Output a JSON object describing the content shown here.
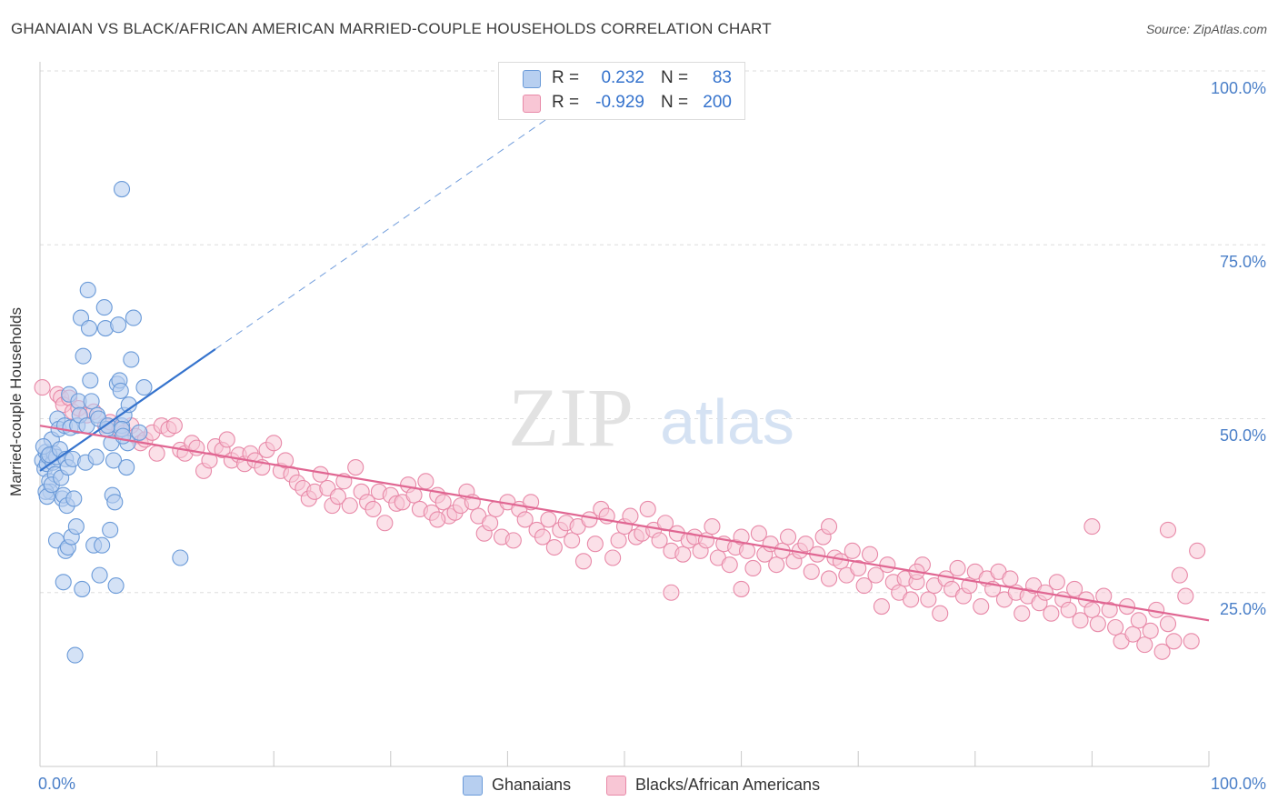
{
  "header": {
    "title": "GHANAIAN VS BLACK/AFRICAN AMERICAN MARRIED-COUPLE HOUSEHOLDS CORRELATION CHART",
    "source": "Source: ZipAtlas.com"
  },
  "watermark": {
    "zip": "ZIP",
    "atlas": "atlas"
  },
  "colors": {
    "blue_fill": "#b7cff0",
    "blue_stroke": "#6a9ad8",
    "blue_line": "#3573cd",
    "pink_fill": "#f8c6d5",
    "pink_stroke": "#e889a8",
    "pink_line": "#e06692",
    "axis_text": "#4a7fc8",
    "grid": "#dddddd"
  },
  "legend_top": {
    "rows": [
      {
        "r_label": "R =",
        "r_value": "0.232",
        "n_label": "N =",
        "n_value": "83"
      },
      {
        "r_label": "R =",
        "r_value": "-0.929",
        "n_label": "N =",
        "n_value": "200"
      }
    ]
  },
  "legend_bottom": [
    "Ghanaians",
    "Blacks/African Americans"
  ],
  "chart_data": {
    "type": "scatter",
    "title": "GHANAIAN VS BLACK/AFRICAN AMERICAN MARRIED-COUPLE HOUSEHOLDS CORRELATION CHART",
    "ylabel": "Married-couple Households",
    "xlabel": "",
    "x_tick_labels": [
      "0.0%",
      "100.0%"
    ],
    "y_tick_labels": [
      "25.0%",
      "50.0%",
      "75.0%",
      "100.0%"
    ],
    "xlim": [
      0,
      100
    ],
    "ylim": [
      0,
      100
    ],
    "grid": true,
    "legend_position": "top-center",
    "series": [
      {
        "name": "Ghanaians",
        "r": 0.232,
        "n": 83,
        "trend": {
          "x": [
            0,
            15
          ],
          "y": [
            42.5,
            60.0
          ],
          "extended_to": [
            45,
            95
          ]
        },
        "points": [
          [
            0.2,
            44.0
          ],
          [
            0.4,
            42.8
          ],
          [
            0.5,
            45.2
          ],
          [
            0.6,
            43.5
          ],
          [
            0.7,
            44.6
          ],
          [
            0.8,
            41.0
          ],
          [
            0.9,
            39.5
          ],
          [
            1.0,
            47.0
          ],
          [
            1.1,
            43.7
          ],
          [
            1.2,
            45.0
          ],
          [
            1.3,
            42.0
          ],
          [
            1.4,
            44.5
          ],
          [
            0.3,
            46.0
          ],
          [
            0.5,
            39.5
          ],
          [
            0.6,
            38.8
          ],
          [
            0.8,
            44.8
          ],
          [
            1.0,
            40.5
          ],
          [
            1.5,
            50.0
          ],
          [
            1.6,
            48.5
          ],
          [
            1.7,
            45.6
          ],
          [
            1.8,
            41.5
          ],
          [
            1.9,
            38.5
          ],
          [
            2.0,
            39.0
          ],
          [
            2.1,
            49.0
          ],
          [
            2.2,
            44.2
          ],
          [
            2.3,
            37.5
          ],
          [
            2.4,
            43.0
          ],
          [
            1.4,
            32.5
          ],
          [
            2.0,
            26.5
          ],
          [
            2.2,
            31.0
          ],
          [
            2.4,
            31.5
          ],
          [
            2.5,
            53.5
          ],
          [
            2.6,
            48.7
          ],
          [
            2.7,
            33.0
          ],
          [
            2.8,
            44.2
          ],
          [
            2.9,
            38.5
          ],
          [
            3.0,
            16.0
          ],
          [
            3.1,
            34.5
          ],
          [
            3.2,
            49.0
          ],
          [
            3.3,
            52.5
          ],
          [
            3.4,
            50.5
          ],
          [
            3.5,
            64.5
          ],
          [
            3.6,
            25.5
          ],
          [
            3.7,
            59.0
          ],
          [
            3.9,
            43.7
          ],
          [
            4.0,
            49.0
          ],
          [
            4.1,
            68.5
          ],
          [
            4.2,
            63.0
          ],
          [
            4.3,
            55.5
          ],
          [
            4.4,
            52.5
          ],
          [
            4.6,
            31.8
          ],
          [
            4.8,
            44.5
          ],
          [
            4.9,
            50.5
          ],
          [
            5.0,
            50.0
          ],
          [
            5.1,
            27.5
          ],
          [
            5.3,
            31.8
          ],
          [
            5.5,
            66.0
          ],
          [
            5.6,
            63.0
          ],
          [
            5.7,
            48.5
          ],
          [
            5.8,
            49.0
          ],
          [
            6.0,
            34.0
          ],
          [
            6.1,
            46.5
          ],
          [
            6.2,
            39.0
          ],
          [
            6.3,
            44.0
          ],
          [
            6.4,
            38.0
          ],
          [
            6.5,
            26.0
          ],
          [
            6.6,
            55.0
          ],
          [
            6.7,
            63.5
          ],
          [
            6.8,
            55.5
          ],
          [
            6.9,
            54.0
          ],
          [
            7.0,
            49.0
          ],
          [
            7.2,
            50.5
          ],
          [
            7.4,
            43.0
          ],
          [
            7.5,
            46.5
          ],
          [
            7.6,
            52.0
          ],
          [
            7.8,
            58.5
          ],
          [
            8.0,
            64.5
          ],
          [
            8.5,
            48.0
          ],
          [
            8.9,
            54.5
          ],
          [
            7.0,
            48.5
          ],
          [
            7.1,
            47.5
          ],
          [
            7.0,
            83.0
          ],
          [
            12.0,
            30.0
          ]
        ]
      },
      {
        "name": "Blacks/African Americans",
        "r": -0.929,
        "n": 200,
        "trend": {
          "x": [
            0,
            100
          ],
          "y": [
            49.0,
            21.0
          ]
        },
        "points": [
          [
            0.2,
            54.5
          ],
          [
            1.5,
            53.5
          ],
          [
            1.8,
            53.0
          ],
          [
            2.0,
            52.0
          ],
          [
            2.5,
            53.0
          ],
          [
            2.8,
            51.0
          ],
          [
            3.3,
            51.5
          ],
          [
            4.0,
            50.5
          ],
          [
            4.6,
            51.0
          ],
          [
            5.6,
            49.0
          ],
          [
            6.0,
            49.5
          ],
          [
            6.8,
            48.5
          ],
          [
            7.2,
            48.0
          ],
          [
            7.8,
            49.0
          ],
          [
            8.2,
            47.5
          ],
          [
            8.6,
            46.5
          ],
          [
            9.0,
            47.0
          ],
          [
            9.6,
            48.0
          ],
          [
            10.0,
            45.0
          ],
          [
            10.4,
            49.0
          ],
          [
            11.0,
            48.5
          ],
          [
            11.5,
            49.0
          ],
          [
            12.0,
            45.5
          ],
          [
            12.4,
            45.0
          ],
          [
            13.0,
            46.5
          ],
          [
            13.4,
            45.8
          ],
          [
            14.0,
            42.5
          ],
          [
            14.5,
            44.0
          ],
          [
            15.0,
            46.0
          ],
          [
            15.6,
            45.5
          ],
          [
            16.0,
            47.0
          ],
          [
            16.4,
            44.0
          ],
          [
            17.0,
            44.8
          ],
          [
            17.5,
            43.5
          ],
          [
            18.0,
            45.0
          ],
          [
            18.4,
            44.0
          ],
          [
            19.0,
            43.0
          ],
          [
            19.4,
            45.5
          ],
          [
            20.0,
            46.5
          ],
          [
            20.6,
            42.5
          ],
          [
            21.0,
            44.0
          ],
          [
            21.5,
            42.0
          ],
          [
            22.0,
            40.8
          ],
          [
            22.5,
            40.0
          ],
          [
            23.0,
            38.5
          ],
          [
            23.5,
            39.5
          ],
          [
            24.0,
            42.0
          ],
          [
            24.6,
            40.0
          ],
          [
            25.0,
            37.5
          ],
          [
            25.5,
            38.8
          ],
          [
            26.0,
            41.0
          ],
          [
            26.5,
            37.5
          ],
          [
            27.0,
            43.0
          ],
          [
            27.5,
            39.5
          ],
          [
            28.0,
            38.0
          ],
          [
            28.5,
            37.0
          ],
          [
            29.0,
            39.5
          ],
          [
            29.5,
            35.0
          ],
          [
            30.0,
            39.0
          ],
          [
            30.5,
            37.8
          ],
          [
            31.0,
            38.0
          ],
          [
            31.5,
            40.5
          ],
          [
            32.0,
            39.0
          ],
          [
            32.5,
            37.0
          ],
          [
            33.0,
            41.0
          ],
          [
            33.5,
            36.5
          ],
          [
            34.0,
            39.0
          ],
          [
            34.5,
            38.0
          ],
          [
            35.0,
            36.0
          ],
          [
            35.5,
            36.5
          ],
          [
            36.0,
            37.5
          ],
          [
            36.5,
            39.5
          ],
          [
            37.0,
            38.0
          ],
          [
            37.5,
            36.0
          ],
          [
            38.0,
            33.5
          ],
          [
            38.5,
            35.0
          ],
          [
            39.0,
            37.0
          ],
          [
            39.5,
            33.0
          ],
          [
            40.0,
            38.0
          ],
          [
            40.5,
            32.5
          ],
          [
            41.0,
            37.0
          ],
          [
            41.5,
            35.5
          ],
          [
            42.0,
            38.0
          ],
          [
            42.5,
            34.0
          ],
          [
            43.0,
            33.0
          ],
          [
            43.5,
            35.5
          ],
          [
            44.0,
            31.5
          ],
          [
            44.5,
            34.0
          ],
          [
            45.0,
            35.0
          ],
          [
            45.5,
            32.5
          ],
          [
            46.0,
            34.5
          ],
          [
            46.5,
            29.5
          ],
          [
            47.0,
            35.5
          ],
          [
            47.5,
            32.0
          ],
          [
            48.0,
            37.0
          ],
          [
            48.5,
            36.0
          ],
          [
            49.0,
            30.0
          ],
          [
            49.5,
            32.5
          ],
          [
            50.0,
            34.5
          ],
          [
            50.5,
            36.0
          ],
          [
            51.0,
            33.0
          ],
          [
            51.5,
            33.5
          ],
          [
            52.0,
            37.0
          ],
          [
            52.5,
            34.0
          ],
          [
            53.0,
            32.5
          ],
          [
            53.5,
            35.0
          ],
          [
            54.0,
            31.0
          ],
          [
            54.5,
            33.5
          ],
          [
            55.0,
            30.5
          ],
          [
            55.5,
            32.5
          ],
          [
            56.0,
            33.0
          ],
          [
            56.5,
            31.0
          ],
          [
            57.0,
            32.5
          ],
          [
            57.5,
            34.5
          ],
          [
            58.0,
            30.0
          ],
          [
            58.5,
            32.0
          ],
          [
            59.0,
            29.0
          ],
          [
            59.5,
            31.5
          ],
          [
            60.0,
            33.0
          ],
          [
            60.5,
            31.0
          ],
          [
            61.0,
            28.5
          ],
          [
            61.5,
            33.5
          ],
          [
            62.0,
            30.5
          ],
          [
            62.5,
            32.0
          ],
          [
            63.0,
            29.0
          ],
          [
            63.5,
            31.0
          ],
          [
            64.0,
            33.0
          ],
          [
            64.5,
            29.5
          ],
          [
            65.0,
            31.0
          ],
          [
            65.5,
            32.0
          ],
          [
            66.0,
            28.0
          ],
          [
            66.5,
            30.5
          ],
          [
            67.0,
            33.0
          ],
          [
            67.5,
            27.0
          ],
          [
            68.0,
            30.0
          ],
          [
            68.5,
            29.5
          ],
          [
            69.0,
            27.5
          ],
          [
            69.5,
            31.0
          ],
          [
            70.0,
            28.5
          ],
          [
            70.5,
            26.0
          ],
          [
            71.0,
            30.5
          ],
          [
            71.5,
            27.5
          ],
          [
            72.0,
            23.0
          ],
          [
            72.5,
            29.0
          ],
          [
            73.0,
            26.5
          ],
          [
            73.5,
            25.0
          ],
          [
            74.0,
            27.0
          ],
          [
            74.5,
            24.0
          ],
          [
            75.0,
            26.5
          ],
          [
            75.5,
            29.0
          ],
          [
            76.0,
            24.0
          ],
          [
            76.5,
            26.0
          ],
          [
            77.0,
            22.0
          ],
          [
            77.5,
            27.0
          ],
          [
            78.0,
            25.5
          ],
          [
            78.5,
            28.5
          ],
          [
            79.0,
            24.5
          ],
          [
            79.5,
            26.0
          ],
          [
            80.0,
            28.0
          ],
          [
            80.5,
            23.0
          ],
          [
            81.0,
            27.0
          ],
          [
            81.5,
            25.5
          ],
          [
            82.0,
            28.0
          ],
          [
            82.5,
            24.0
          ],
          [
            83.0,
            27.0
          ],
          [
            83.5,
            25.0
          ],
          [
            84.0,
            22.0
          ],
          [
            84.5,
            24.5
          ],
          [
            85.0,
            26.0
          ],
          [
            85.5,
            23.5
          ],
          [
            86.0,
            25.0
          ],
          [
            86.5,
            22.0
          ],
          [
            87.0,
            26.5
          ],
          [
            87.5,
            24.0
          ],
          [
            88.0,
            22.5
          ],
          [
            88.5,
            25.5
          ],
          [
            89.0,
            21.0
          ],
          [
            89.5,
            24.0
          ],
          [
            90.0,
            22.5
          ],
          [
            90.5,
            20.5
          ],
          [
            91.0,
            24.5
          ],
          [
            91.5,
            22.5
          ],
          [
            92.0,
            20.0
          ],
          [
            92.5,
            18.0
          ],
          [
            93.0,
            23.0
          ],
          [
            93.5,
            19.0
          ],
          [
            94.0,
            21.0
          ],
          [
            94.5,
            17.5
          ],
          [
            95.0,
            19.5
          ],
          [
            95.5,
            22.5
          ],
          [
            96.0,
            16.5
          ],
          [
            96.5,
            20.5
          ],
          [
            97.0,
            18.0
          ],
          [
            97.5,
            27.5
          ],
          [
            98.0,
            24.5
          ],
          [
            98.5,
            18.0
          ],
          [
            99.0,
            31.0
          ],
          [
            34.0,
            35.5
          ],
          [
            54.0,
            25.0
          ],
          [
            60.0,
            25.5
          ],
          [
            67.5,
            34.5
          ],
          [
            75.0,
            28.0
          ],
          [
            90.0,
            34.5
          ],
          [
            96.5,
            34.0
          ]
        ]
      }
    ]
  }
}
